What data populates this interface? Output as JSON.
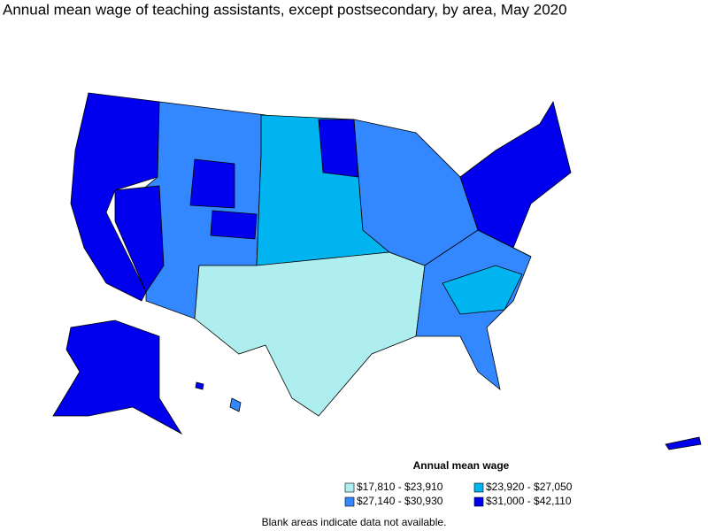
{
  "title": "Annual mean wage of teaching assistants, except postsecondary, by area, May 2020",
  "legend": {
    "title": "Annual mean wage",
    "items": [
      {
        "label": "$17,810 - $23,910",
        "color": "#aeeeee"
      },
      {
        "label": "$23,920 - $27,050",
        "color": "#00b4f0"
      },
      {
        "label": "$27,140 - $30,930",
        "color": "#3388ff"
      },
      {
        "label": "$31,000 - $42,110",
        "color": "#0000ee"
      }
    ]
  },
  "footnote": "Blank areas indicate data not available."
}
